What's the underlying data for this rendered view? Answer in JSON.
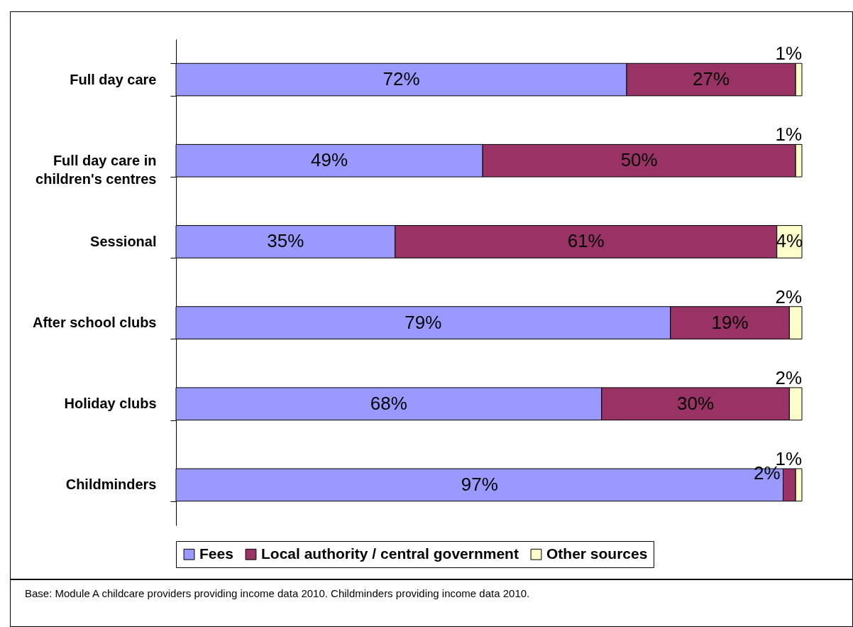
{
  "chart_data": {
    "type": "bar",
    "orientation": "horizontal",
    "stacked": true,
    "legend": "bottom",
    "grid": false,
    "categories": [
      "Full day care",
      "Full day care in children's centres",
      "Sessional",
      "After school clubs",
      "Holiday clubs",
      "Childminders"
    ],
    "series": [
      {
        "name": "Fees",
        "color": "#9999ff",
        "values": [
          72,
          49,
          35,
          79,
          68,
          97
        ],
        "value_labels": [
          "72%",
          "49%",
          "35%",
          "79%",
          "68%",
          "97%"
        ]
      },
      {
        "name": "Local authority / central government",
        "color": "#993366",
        "values": [
          27,
          50,
          61,
          19,
          30,
          2
        ],
        "value_labels": [
          "27%",
          "50%",
          "61%",
          "19%",
          "30%",
          "2%"
        ]
      },
      {
        "name": "Other sources",
        "color": "#ffffcc",
        "values": [
          1,
          1,
          4,
          2,
          2,
          1
        ],
        "value_labels": [
          "1%",
          "1%",
          "4%",
          "2%",
          "2%",
          "1%"
        ]
      }
    ],
    "annotations": [
      "Base: Module A childcare providers providing income data 2010. Childminders providing income data 2010."
    ]
  }
}
